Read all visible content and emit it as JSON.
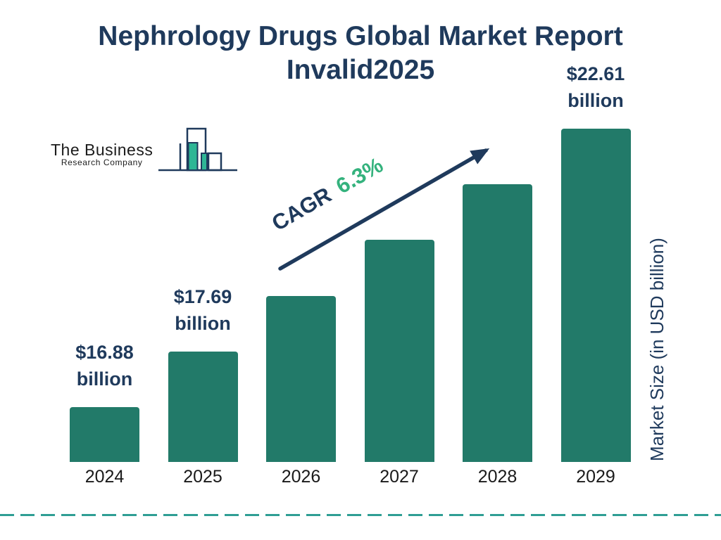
{
  "title": {
    "line1": "Nephrology Drugs Global Market Report",
    "line2": "2025"
  },
  "logo": {
    "line1": "The Business",
    "line2": "Research Company"
  },
  "y_axis_label": "Market Size (in USD billion)",
  "annotation": {
    "cagr_label": "CAGR",
    "cagr_value": "6.3%"
  },
  "chart_data": {
    "type": "bar",
    "title": "Nephrology Drugs Global Market Report 2025",
    "categories": [
      "2024",
      "2025",
      "2026",
      "2027",
      "2028",
      "2029"
    ],
    "values": [
      16.88,
      17.69,
      18.8,
      19.99,
      21.25,
      22.61
    ],
    "unit": "USD billion",
    "ylabel": "Market Size (in USD billion)",
    "cagr": "6.3%",
    "bar_labels": [
      {
        "category": "2024",
        "index": 0,
        "amount": "$16.88",
        "unit": "billion"
      },
      {
        "category": "2025",
        "index": 1,
        "amount": "$17.69",
        "unit": "billion"
      },
      {
        "category": "2029",
        "index": 5,
        "amount": "$22.61",
        "unit": "billion"
      }
    ],
    "legend": "none",
    "gridlines": false,
    "colors": {
      "bar": "#227a69",
      "navy": "#1f3a5c",
      "green": "#34b27d",
      "dashed_line": "#2f9e94",
      "logo_fill": "#2fb695",
      "year_text": "#1a1a1a"
    }
  }
}
